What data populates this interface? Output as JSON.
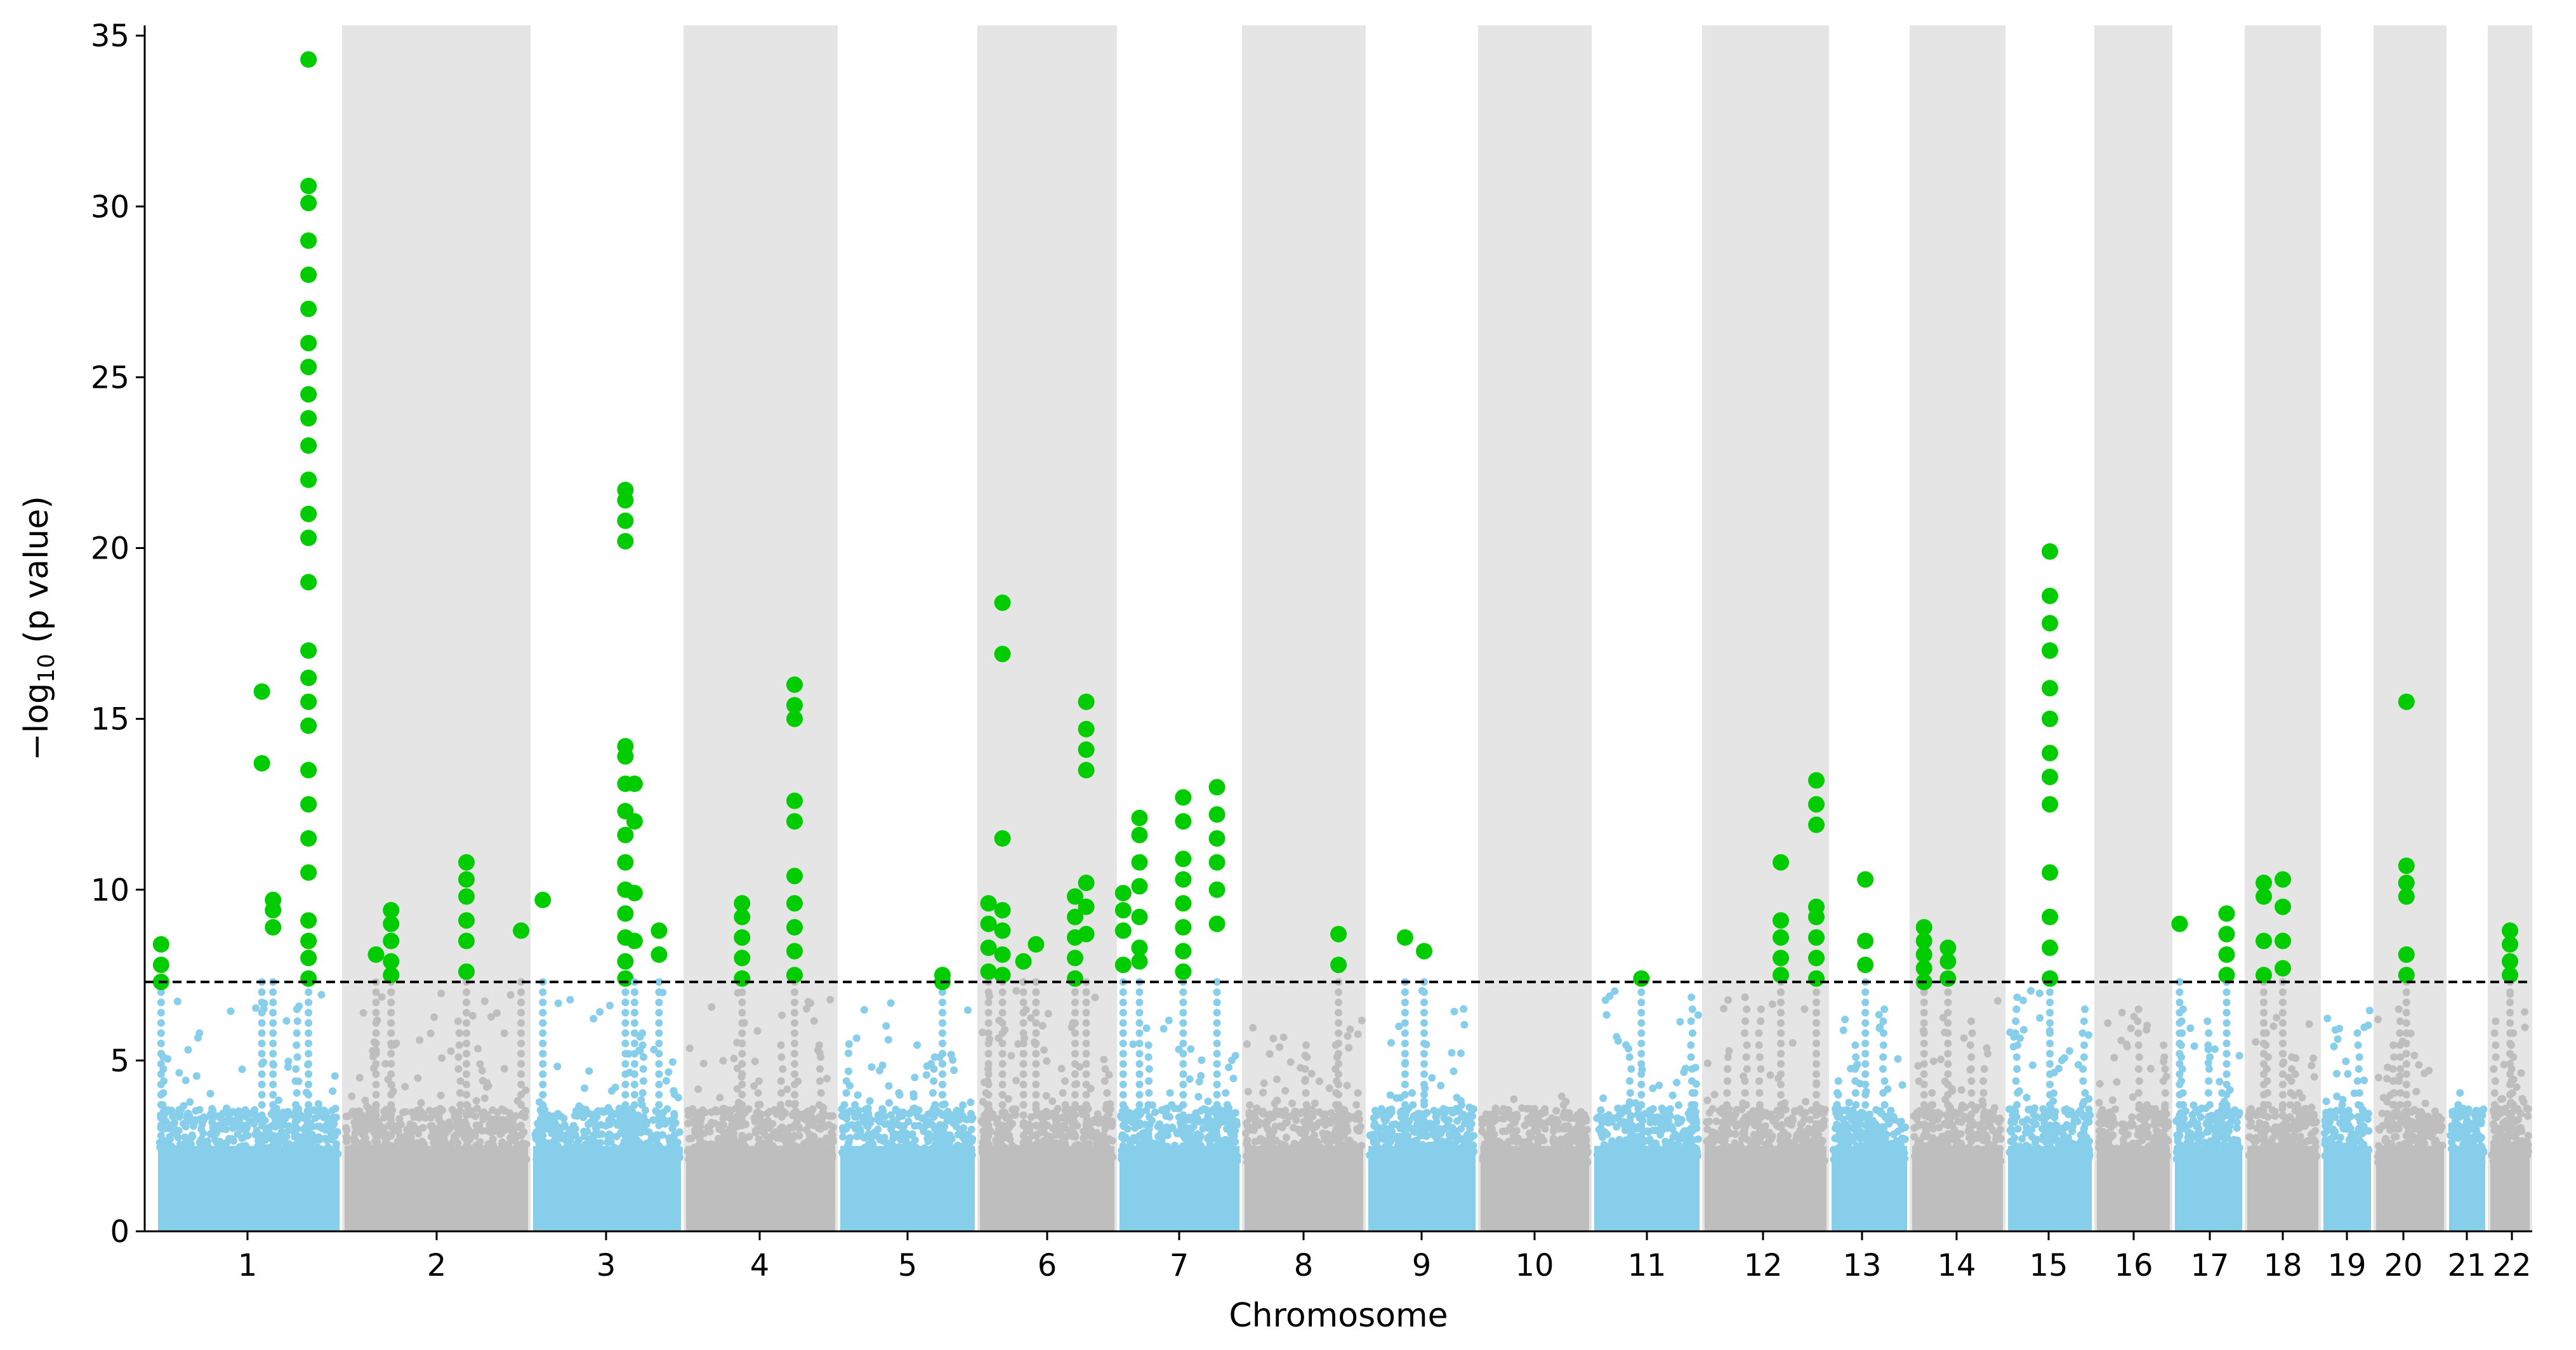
{
  "chart_data": {
    "type": "scatter",
    "subtype": "manhattan",
    "title": "",
    "xlabel": "Chromosome",
    "ylabel_main": "−log",
    "ylabel_sub": "10",
    "ylabel_tail": " (p value)",
    "ylim": [
      0,
      35.3
    ],
    "yticks": [
      0,
      5,
      10,
      15,
      20,
      25,
      30,
      35
    ],
    "threshold": 7.3,
    "colors": {
      "odd_chromosome": "#87ceeb",
      "even_chromosome": "#bebebe",
      "significant": "#00cc00",
      "shade_band": "#e5e5e5",
      "threshold_line": "#000000"
    },
    "chromosomes": [
      {
        "label": "1",
        "shaded": false,
        "max_background": 7.0
      },
      {
        "label": "2",
        "shaded": true,
        "max_background": 7.0
      },
      {
        "label": "3",
        "shaded": false,
        "max_background": 7.0
      },
      {
        "label": "4",
        "shaded": true,
        "max_background": 7.0
      },
      {
        "label": "5",
        "shaded": false,
        "max_background": 6.9
      },
      {
        "label": "6",
        "shaded": true,
        "max_background": 7.2
      },
      {
        "label": "7",
        "shaded": false,
        "max_background": 7.1
      },
      {
        "label": "8",
        "shaded": true,
        "max_background": 6.3
      },
      {
        "label": "9",
        "shaded": false,
        "max_background": 7.2
      },
      {
        "label": "10",
        "shaded": true,
        "max_background": 4.0
      },
      {
        "label": "11",
        "shaded": false,
        "max_background": 7.2
      },
      {
        "label": "12",
        "shaded": true,
        "max_background": 7.1
      },
      {
        "label": "13",
        "shaded": false,
        "max_background": 6.6
      },
      {
        "label": "14",
        "shaded": true,
        "max_background": 7.2
      },
      {
        "label": "15",
        "shaded": false,
        "max_background": 7.2
      },
      {
        "label": "16",
        "shaded": true,
        "max_background": 7.1
      },
      {
        "label": "17",
        "shaded": false,
        "max_background": 7.1
      },
      {
        "label": "18",
        "shaded": true,
        "max_background": 7.2
      },
      {
        "label": "19",
        "shaded": false,
        "max_background": 6.6
      },
      {
        "label": "20",
        "shaded": true,
        "max_background": 7.2
      },
      {
        "label": "21",
        "shaded": false,
        "max_background": 4.3
      },
      {
        "label": "22",
        "shaded": true,
        "max_background": 7.1
      }
    ],
    "significant_loci": [
      {
        "chr": "1",
        "pos": 0.03,
        "values": [
          7.3,
          7.8,
          8.4
        ]
      },
      {
        "chr": "1",
        "pos": 0.57,
        "values": [
          13.7,
          15.8
        ]
      },
      {
        "chr": "1",
        "pos": 0.63,
        "values": [
          8.9,
          9.4,
          9.7
        ]
      },
      {
        "chr": "1",
        "pos": 0.82,
        "values": [
          7.4,
          8.0,
          8.5,
          9.1,
          10.5,
          11.5,
          12.5,
          13.5,
          14.8,
          15.5,
          16.2,
          17.0,
          19.0,
          20.3,
          21.0,
          22.0,
          23.0,
          23.8,
          24.5,
          25.3,
          26.0,
          27.0,
          28.0,
          29.0,
          30.1,
          30.6,
          34.3
        ]
      },
      {
        "chr": "2",
        "pos": 0.18,
        "values": [
          8.1
        ]
      },
      {
        "chr": "2",
        "pos": 0.26,
        "values": [
          7.5,
          7.9,
          8.5,
          9.0,
          9.4
        ]
      },
      {
        "chr": "2",
        "pos": 0.66,
        "values": [
          7.6,
          8.5,
          9.1,
          9.8,
          10.3,
          10.8
        ]
      },
      {
        "chr": "2",
        "pos": 0.95,
        "values": [
          8.8
        ]
      },
      {
        "chr": "3",
        "pos": 0.08,
        "values": [
          9.7
        ]
      },
      {
        "chr": "3",
        "pos": 0.62,
        "values": [
          7.4,
          7.9,
          8.6,
          9.3,
          10.0,
          10.8,
          11.6,
          12.3,
          13.1,
          13.9,
          14.2,
          20.2,
          20.8,
          21.4,
          21.7
        ]
      },
      {
        "chr": "3",
        "pos": 0.68,
        "values": [
          8.5,
          9.9,
          12.0,
          13.1
        ]
      },
      {
        "chr": "3",
        "pos": 0.84,
        "values": [
          8.1,
          8.8
        ]
      },
      {
        "chr": "4",
        "pos": 0.38,
        "values": [
          7.4,
          8.0,
          8.6,
          9.2,
          9.6
        ]
      },
      {
        "chr": "4",
        "pos": 0.72,
        "values": [
          7.5,
          8.2,
          8.9,
          9.6,
          10.4,
          12.0,
          12.6,
          15.0,
          15.4,
          16.0
        ]
      },
      {
        "chr": "5",
        "pos": 0.75,
        "values": [
          7.3,
          7.5
        ]
      },
      {
        "chr": "6",
        "pos": 0.08,
        "values": [
          7.6,
          8.3,
          9.0,
          9.6
        ]
      },
      {
        "chr": "6",
        "pos": 0.18,
        "values": [
          7.5,
          8.1,
          8.8,
          9.4,
          11.5,
          16.9,
          18.4
        ]
      },
      {
        "chr": "6",
        "pos": 0.33,
        "values": [
          7.9
        ]
      },
      {
        "chr": "6",
        "pos": 0.42,
        "values": [
          8.4
        ]
      },
      {
        "chr": "6",
        "pos": 0.7,
        "values": [
          7.4,
          8.0,
          8.6,
          9.2,
          9.8
        ]
      },
      {
        "chr": "6",
        "pos": 0.78,
        "values": [
          8.7,
          9.5,
          10.2,
          13.5,
          14.1,
          14.7,
          15.5
        ]
      },
      {
        "chr": "7",
        "pos": 0.05,
        "values": [
          7.8,
          8.8,
          9.4,
          9.9
        ]
      },
      {
        "chr": "7",
        "pos": 0.18,
        "values": [
          7.9,
          8.3,
          9.2,
          10.1,
          10.8,
          11.6,
          12.1
        ]
      },
      {
        "chr": "7",
        "pos": 0.53,
        "values": [
          7.6,
          8.2,
          8.9,
          9.6,
          10.3,
          10.9,
          12.0,
          12.7
        ]
      },
      {
        "chr": "7",
        "pos": 0.8,
        "values": [
          9.0,
          10.0,
          10.8,
          11.5,
          12.2,
          13.0
        ]
      },
      {
        "chr": "8",
        "pos": 0.78,
        "values": [
          7.8,
          8.7
        ]
      },
      {
        "chr": "9",
        "pos": 0.35,
        "values": [
          8.6
        ]
      },
      {
        "chr": "9",
        "pos": 0.52,
        "values": [
          8.2
        ]
      },
      {
        "chr": "11",
        "pos": 0.45,
        "values": [
          7.4
        ]
      },
      {
        "chr": "12",
        "pos": 0.62,
        "values": [
          7.5,
          8.0,
          8.6,
          9.1,
          10.8
        ]
      },
      {
        "chr": "12",
        "pos": 0.9,
        "values": [
          7.4,
          8.0,
          8.6,
          9.2,
          9.5,
          11.9,
          12.5,
          13.2
        ]
      },
      {
        "chr": "13",
        "pos": 0.45,
        "values": [
          7.8,
          8.5,
          10.3
        ]
      },
      {
        "chr": "14",
        "pos": 0.15,
        "values": [
          7.3,
          7.7,
          8.1,
          8.5,
          8.9
        ]
      },
      {
        "chr": "14",
        "pos": 0.4,
        "values": [
          7.4,
          7.9,
          8.3
        ]
      },
      {
        "chr": "15",
        "pos": 0.5,
        "values": [
          7.4,
          8.3,
          9.2,
          10.5,
          12.5,
          13.3,
          14.0,
          15.0,
          15.9,
          17.0,
          17.8,
          18.6,
          19.9
        ]
      },
      {
        "chr": "17",
        "pos": 0.1,
        "values": [
          9.0
        ]
      },
      {
        "chr": "17",
        "pos": 0.75,
        "values": [
          7.5,
          8.1,
          8.7,
          9.3
        ]
      },
      {
        "chr": "18",
        "pos": 0.25,
        "values": [
          7.5,
          8.5,
          9.8,
          10.2
        ]
      },
      {
        "chr": "18",
        "pos": 0.5,
        "values": [
          7.7,
          8.5,
          9.5,
          10.3
        ]
      },
      {
        "chr": "20",
        "pos": 0.45,
        "values": [
          7.5,
          8.1,
          9.8,
          10.2,
          10.7,
          15.5
        ]
      },
      {
        "chr": "22",
        "pos": 0.5,
        "values": [
          7.5,
          7.9,
          8.4,
          8.8
        ]
      }
    ]
  }
}
